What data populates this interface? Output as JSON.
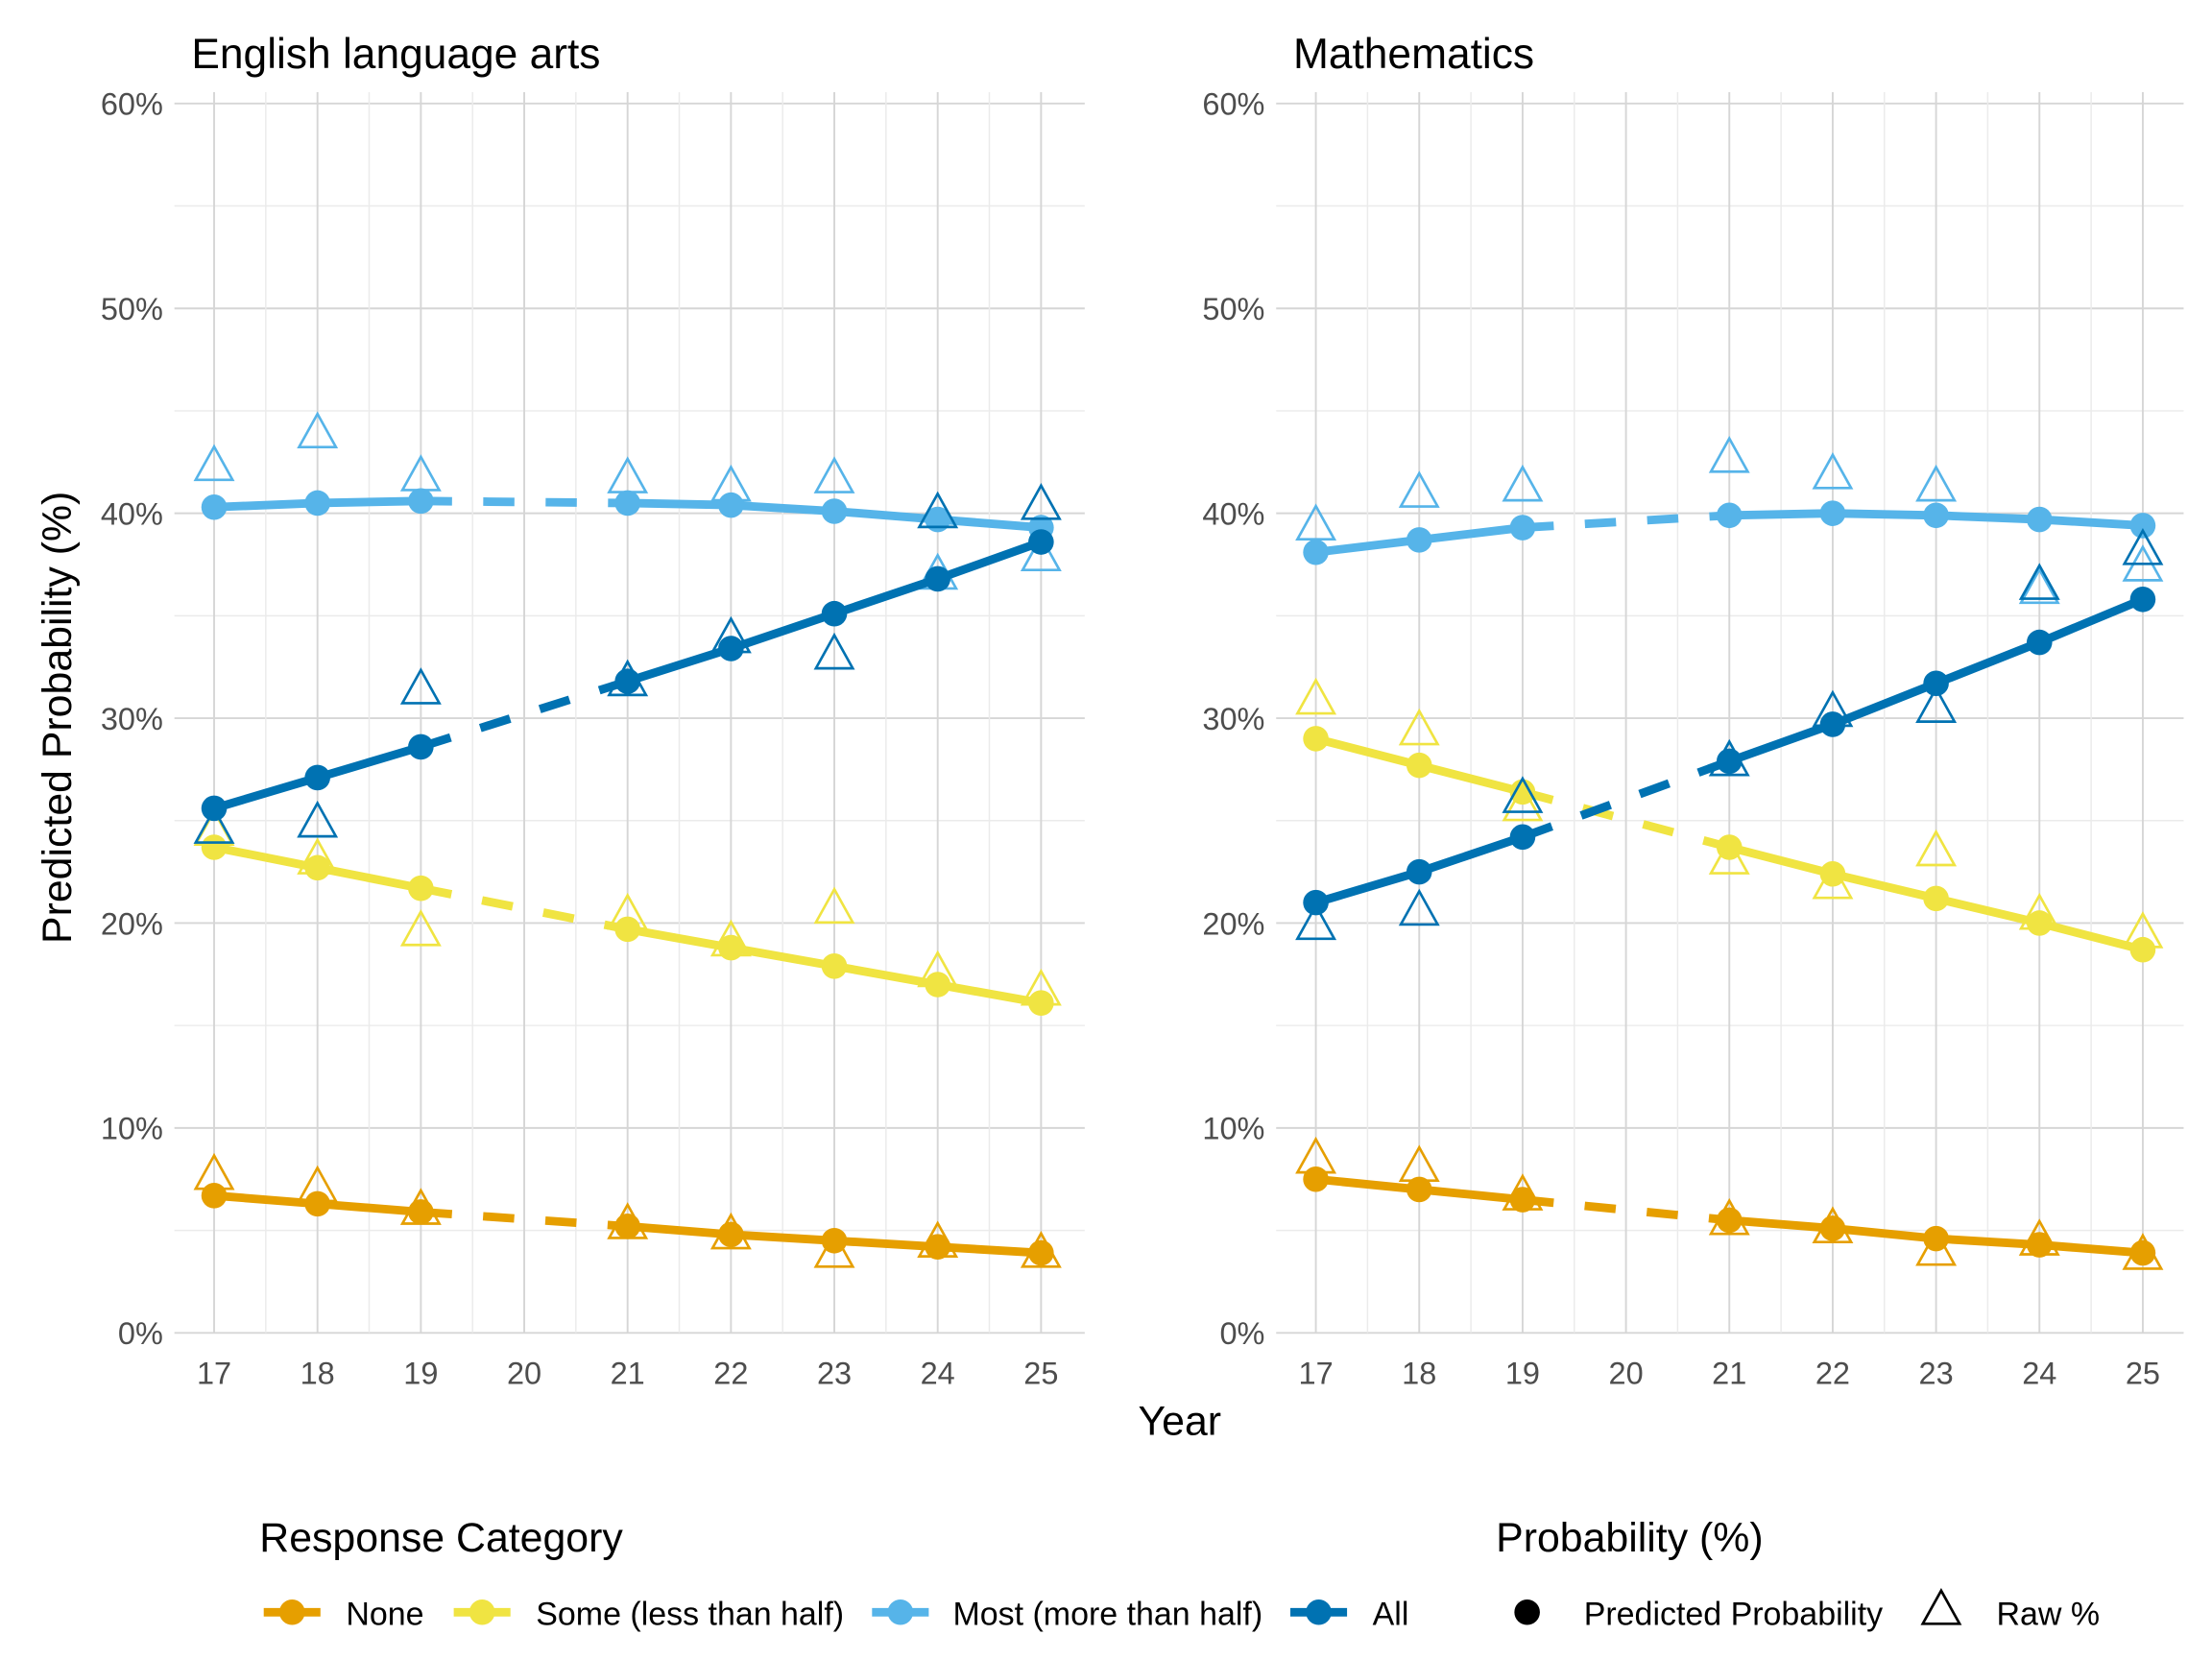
{
  "chart_data": [
    {
      "type": "line",
      "title": "English language arts",
      "xlabel": "Year",
      "ylabel": "Predicted Probability (%)",
      "x": [
        17,
        18,
        19,
        21,
        22,
        23,
        24,
        25
      ],
      "x_ticks": [
        17,
        18,
        19,
        20,
        21,
        22,
        23,
        24,
        25
      ],
      "ylim": [
        0,
        60
      ],
      "y_ticks": [
        "0%",
        "10%",
        "20%",
        "30%",
        "40%",
        "50%",
        "60%"
      ],
      "grid": true,
      "dashed_between": [
        19,
        21
      ],
      "series": [
        {
          "name": "None",
          "color": "#E69F00",
          "predicted": [
            6.7,
            6.3,
            5.9,
            5.2,
            4.8,
            4.5,
            4.2,
            3.9
          ],
          "raw": [
            7.6,
            7.0,
            5.9,
            5.2,
            4.7,
            3.8,
            4.3,
            3.8
          ]
        },
        {
          "name": "Some (less than half)",
          "color": "#F0E442",
          "predicted": [
            23.7,
            22.7,
            21.7,
            19.7,
            18.8,
            17.9,
            17.0,
            16.1
          ],
          "raw": [
            24.4,
            23.0,
            19.5,
            20.3,
            19.0,
            20.6,
            17.5,
            16.6
          ]
        },
        {
          "name": "Most (more than half)",
          "color": "#56B4E9",
          "predicted": [
            40.3,
            40.5,
            40.6,
            40.5,
            40.4,
            40.1,
            39.7,
            39.3
          ],
          "raw": [
            42.2,
            43.8,
            41.7,
            41.6,
            41.2,
            41.6,
            36.9,
            37.8
          ]
        },
        {
          "name": "All",
          "color": "#0072B2",
          "predicted": [
            25.6,
            27.1,
            28.6,
            31.8,
            33.4,
            35.1,
            36.8,
            38.6
          ],
          "raw": [
            24.5,
            24.8,
            31.3,
            31.7,
            33.8,
            33.0,
            39.9,
            40.3
          ]
        }
      ]
    },
    {
      "type": "line",
      "title": "Mathematics",
      "xlabel": "Year",
      "ylabel": "Predicted Probability (%)",
      "x": [
        17,
        18,
        19,
        21,
        22,
        23,
        24,
        25
      ],
      "x_ticks": [
        17,
        18,
        19,
        20,
        21,
        22,
        23,
        24,
        25
      ],
      "ylim": [
        0,
        60
      ],
      "y_ticks": [
        "0%",
        "10%",
        "20%",
        "30%",
        "40%",
        "50%",
        "60%"
      ],
      "grid": true,
      "dashed_between": [
        19,
        21
      ],
      "series": [
        {
          "name": "None",
          "color": "#E69F00",
          "predicted": [
            7.5,
            7.0,
            6.5,
            5.5,
            5.1,
            4.6,
            4.3,
            3.9
          ],
          "raw": [
            8.4,
            8.0,
            6.6,
            5.4,
            5.0,
            3.9,
            4.4,
            3.7
          ]
        },
        {
          "name": "Some (less than half)",
          "color": "#F0E442",
          "predicted": [
            29.0,
            27.7,
            26.4,
            23.7,
            22.4,
            21.2,
            20.0,
            18.7
          ],
          "raw": [
            30.8,
            29.3,
            25.6,
            23.0,
            21.8,
            23.4,
            20.3,
            19.4
          ]
        },
        {
          "name": "Most (more than half)",
          "color": "#56B4E9",
          "predicted": [
            38.1,
            38.7,
            39.3,
            39.9,
            40.0,
            39.9,
            39.7,
            39.4
          ],
          "raw": [
            39.3,
            40.9,
            41.2,
            42.6,
            41.8,
            41.2,
            36.2,
            37.3
          ]
        },
        {
          "name": "All",
          "color": "#0072B2",
          "predicted": [
            21.0,
            22.5,
            24.2,
            27.9,
            29.7,
            31.7,
            33.7,
            35.8
          ],
          "raw": [
            19.8,
            20.5,
            26.0,
            27.8,
            30.2,
            30.4,
            36.4,
            38.1
          ]
        }
      ]
    }
  ],
  "legend": {
    "position": "bottom",
    "category_title": "Response Category",
    "categories": [
      {
        "label": "None",
        "color": "#E69F00"
      },
      {
        "label": "Some (less than half)",
        "color": "#F0E442"
      },
      {
        "label": "Most (more than half)",
        "color": "#56B4E9"
      },
      {
        "label": "All",
        "color": "#0072B2"
      }
    ],
    "shape_title": "Probability (%)",
    "shapes": [
      {
        "label": "Predicted Probability",
        "shape": "circle"
      },
      {
        "label": "Raw %",
        "shape": "triangle"
      }
    ]
  },
  "xlabel": "Year",
  "ylabel": "Predicted Probability (%)"
}
